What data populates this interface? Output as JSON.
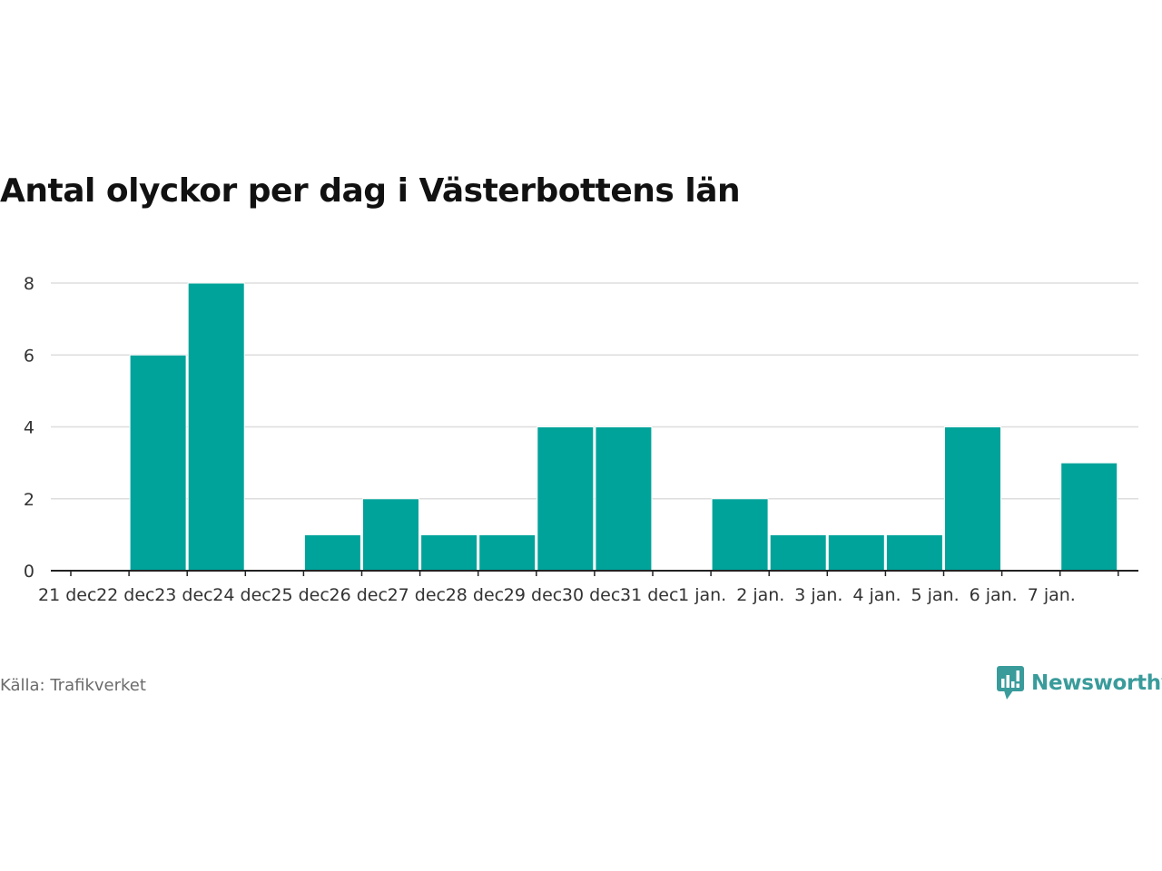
{
  "colors": {
    "bar": "#00a39a",
    "grid": "#dddddd",
    "axis": "#222222",
    "brand": "#3a9b9b"
  },
  "footer": {
    "source": "Källa: Trafikverket",
    "brand_name": "Newsworthy",
    "brand_icon": "newsworthy-logo-icon"
  },
  "chart_data": {
    "type": "bar",
    "title": "Antal olyckor per dag i Västerbottens län",
    "xlabel": "",
    "ylabel": "",
    "categories": [
      "21 dec.",
      "22 dec.",
      "23 dec.",
      "24 dec.",
      "25 dec.",
      "26 dec.",
      "27 dec.",
      "28 dec.",
      "29 dec.",
      "30 dec.",
      "31 dec.",
      "1 jan.",
      "2 jan.",
      "3 jan.",
      "4 jan.",
      "5 jan.",
      "6 jan.",
      "7 jan."
    ],
    "values": [
      0,
      6,
      8,
      0,
      1,
      2,
      1,
      1,
      4,
      4,
      0,
      2,
      1,
      1,
      1,
      4,
      0,
      3
    ],
    "ylim": [
      0,
      8
    ],
    "yticks": [
      "0",
      "2",
      "4",
      "6",
      "8"
    ],
    "grid": true,
    "legend": "none"
  }
}
